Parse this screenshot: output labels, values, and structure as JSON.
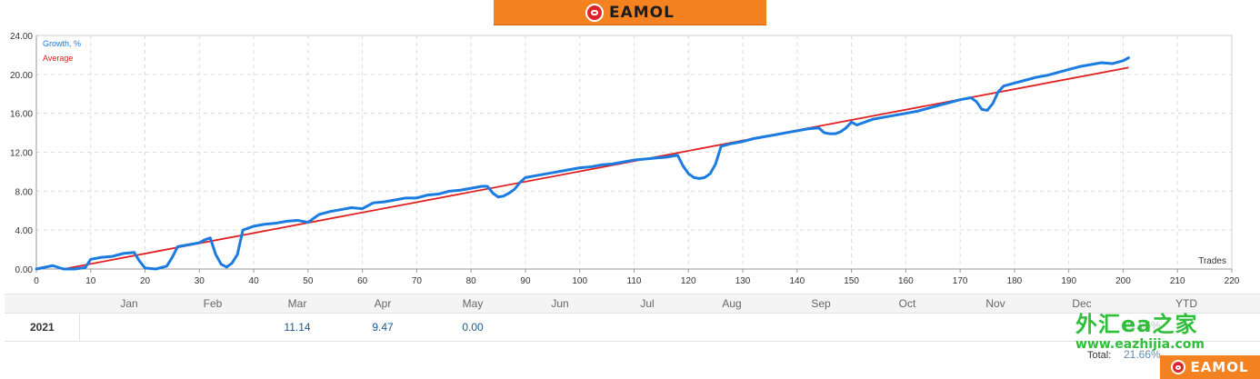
{
  "brand": {
    "top_text": "EAMOL",
    "corner_text": "EAMOL",
    "icon": "eamol-logo-icon"
  },
  "chart_data": {
    "type": "line",
    "xlabel": "Trades",
    "ylabel": "",
    "xlim": [
      0,
      220
    ],
    "ylim": [
      0,
      24
    ],
    "x_ticks": [
      0,
      10,
      20,
      30,
      40,
      50,
      60,
      70,
      80,
      90,
      100,
      110,
      120,
      130,
      140,
      150,
      160,
      170,
      180,
      190,
      200,
      210,
      220
    ],
    "y_ticks": [
      "0.00",
      "4.00",
      "8.00",
      "12.00",
      "16.00",
      "20.00",
      "24.00"
    ],
    "grid": true,
    "legend_position": "top-left",
    "series": [
      {
        "name": "Growth, %",
        "color": "#1a7be0",
        "x": [
          0,
          3,
          5,
          7,
          9,
          10,
          12,
          14,
          16,
          18,
          19,
          20,
          22,
          24,
          25,
          26,
          28,
          30,
          31,
          32,
          33,
          34,
          35,
          36,
          37,
          38,
          40,
          42,
          44,
          46,
          48,
          50,
          52,
          54,
          56,
          58,
          60,
          62,
          64,
          66,
          68,
          70,
          72,
          74,
          76,
          78,
          80,
          82,
          83,
          84,
          85,
          86,
          87,
          88,
          89,
          90,
          92,
          94,
          96,
          98,
          100,
          102,
          104,
          106,
          108,
          110,
          112,
          114,
          116,
          118,
          119,
          120,
          121,
          122,
          123,
          124,
          125,
          126,
          128,
          130,
          132,
          134,
          136,
          138,
          140,
          142,
          144,
          145,
          146,
          147,
          148,
          149,
          150,
          151,
          152,
          154,
          156,
          158,
          160,
          162,
          164,
          166,
          168,
          170,
          172,
          173,
          174,
          175,
          176,
          177,
          178,
          180,
          182,
          184,
          186,
          188,
          190,
          192,
          194,
          196,
          198,
          200,
          201
        ],
        "y": [
          0.0,
          0.35,
          0.0,
          0.0,
          0.15,
          1.0,
          1.2,
          1.3,
          1.6,
          1.7,
          0.8,
          0.1,
          0.0,
          0.3,
          1.2,
          2.3,
          2.5,
          2.7,
          3.0,
          3.2,
          1.5,
          0.5,
          0.2,
          0.6,
          1.5,
          4.0,
          4.4,
          4.6,
          4.7,
          4.9,
          5.0,
          4.8,
          5.6,
          5.9,
          6.1,
          6.3,
          6.2,
          6.8,
          6.9,
          7.1,
          7.3,
          7.3,
          7.6,
          7.7,
          8.0,
          8.1,
          8.3,
          8.5,
          8.5,
          7.8,
          7.4,
          7.5,
          7.8,
          8.2,
          8.9,
          9.4,
          9.6,
          9.8,
          10.0,
          10.2,
          10.4,
          10.5,
          10.7,
          10.8,
          11.0,
          11.2,
          11.3,
          11.4,
          11.5,
          11.7,
          10.6,
          9.8,
          9.4,
          9.3,
          9.4,
          9.8,
          10.8,
          12.6,
          12.9,
          13.1,
          13.4,
          13.6,
          13.8,
          14.0,
          14.2,
          14.4,
          14.5,
          14.0,
          13.9,
          13.9,
          14.1,
          14.5,
          15.1,
          14.8,
          15.0,
          15.4,
          15.6,
          15.8,
          16.0,
          16.2,
          16.5,
          16.8,
          17.1,
          17.4,
          17.6,
          17.2,
          16.4,
          16.3,
          17.0,
          18.2,
          18.8,
          19.1,
          19.4,
          19.7,
          19.9,
          20.2,
          20.5,
          20.8,
          21.0,
          21.2,
          21.1,
          21.4,
          21.7
        ]
      },
      {
        "name": "Average",
        "color": "#e02020",
        "x": [
          5,
          201
        ],
        "y": [
          0.0,
          20.7
        ]
      }
    ]
  },
  "table": {
    "months": [
      "Jan",
      "Feb",
      "Mar",
      "Apr",
      "May",
      "Jun",
      "Jul",
      "Aug",
      "Sep",
      "Oct",
      "Nov",
      "Dec",
      "YTD"
    ],
    "rows": [
      {
        "year": "2021",
        "values": [
          "",
          "",
          "11.14",
          "9.47",
          "0.00",
          "",
          "",
          "",
          "",
          "",
          "",
          "",
          ""
        ]
      }
    ],
    "total_label": "Total:"
  },
  "watermark": {
    "cn_text": "外汇ea之家",
    "url": "www.eazhijia.com",
    "ytd_partial": "21.66%",
    "total_partial": "21.66%"
  }
}
